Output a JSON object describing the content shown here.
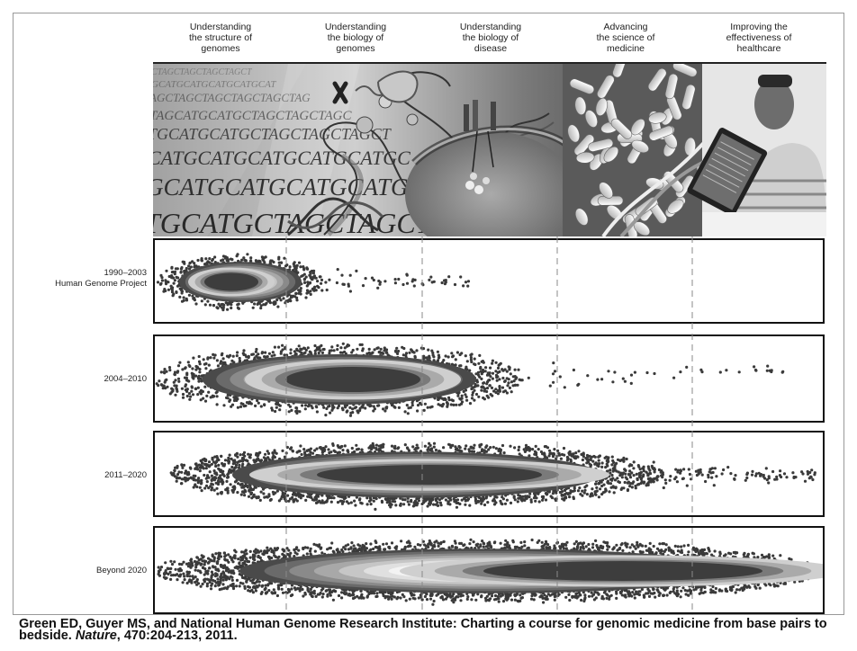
{
  "column_headers": [
    "Understanding\nthe structure of\ngenomes",
    "Understanding\nthe biology of\ngenomes",
    "Understanding\nthe biology of\ndisease",
    "Advancing\nthe science of\nmedicine",
    "Improving the\neffectiveness of\nhealthcare"
  ],
  "banner": {
    "dna_letter_rows": [
      "CTAGCTAGCTAGCTAGCT",
      "GCATGCATGCATGCATGCAT",
      "AGCTAGCTAGCTAGCTAGCTAG",
      "TAGCATGCATGCTAGCTAGCTAGC",
      "TGCATGCATGCTAGCTAGCTAGCT",
      "CATGCATGCATGCATGCATGC",
      "GCATGCATGCATGCATG",
      "TGCATGCTAGCTAGCT"
    ],
    "icons": [
      "dna-sequence-text",
      "chromosome-icon",
      "dna-helix-icon",
      "cell-membrane-icon",
      "pills-icon",
      "tablet-patient-photo"
    ]
  },
  "rows": [
    {
      "label": "1990–2003\nHuman Genome Project"
    },
    {
      "label": "2004–2010"
    },
    {
      "label": "2011–2020"
    },
    {
      "label": "Beyond 2020"
    }
  ],
  "caption": {
    "text_before": "Green ED, Guyer MS, and National Human Genome Research Institute: Charting a course for genomic medicine from base pairs to bedside. ",
    "journal": "Nature",
    "text_after": ", 470:204-213, 2011."
  }
}
